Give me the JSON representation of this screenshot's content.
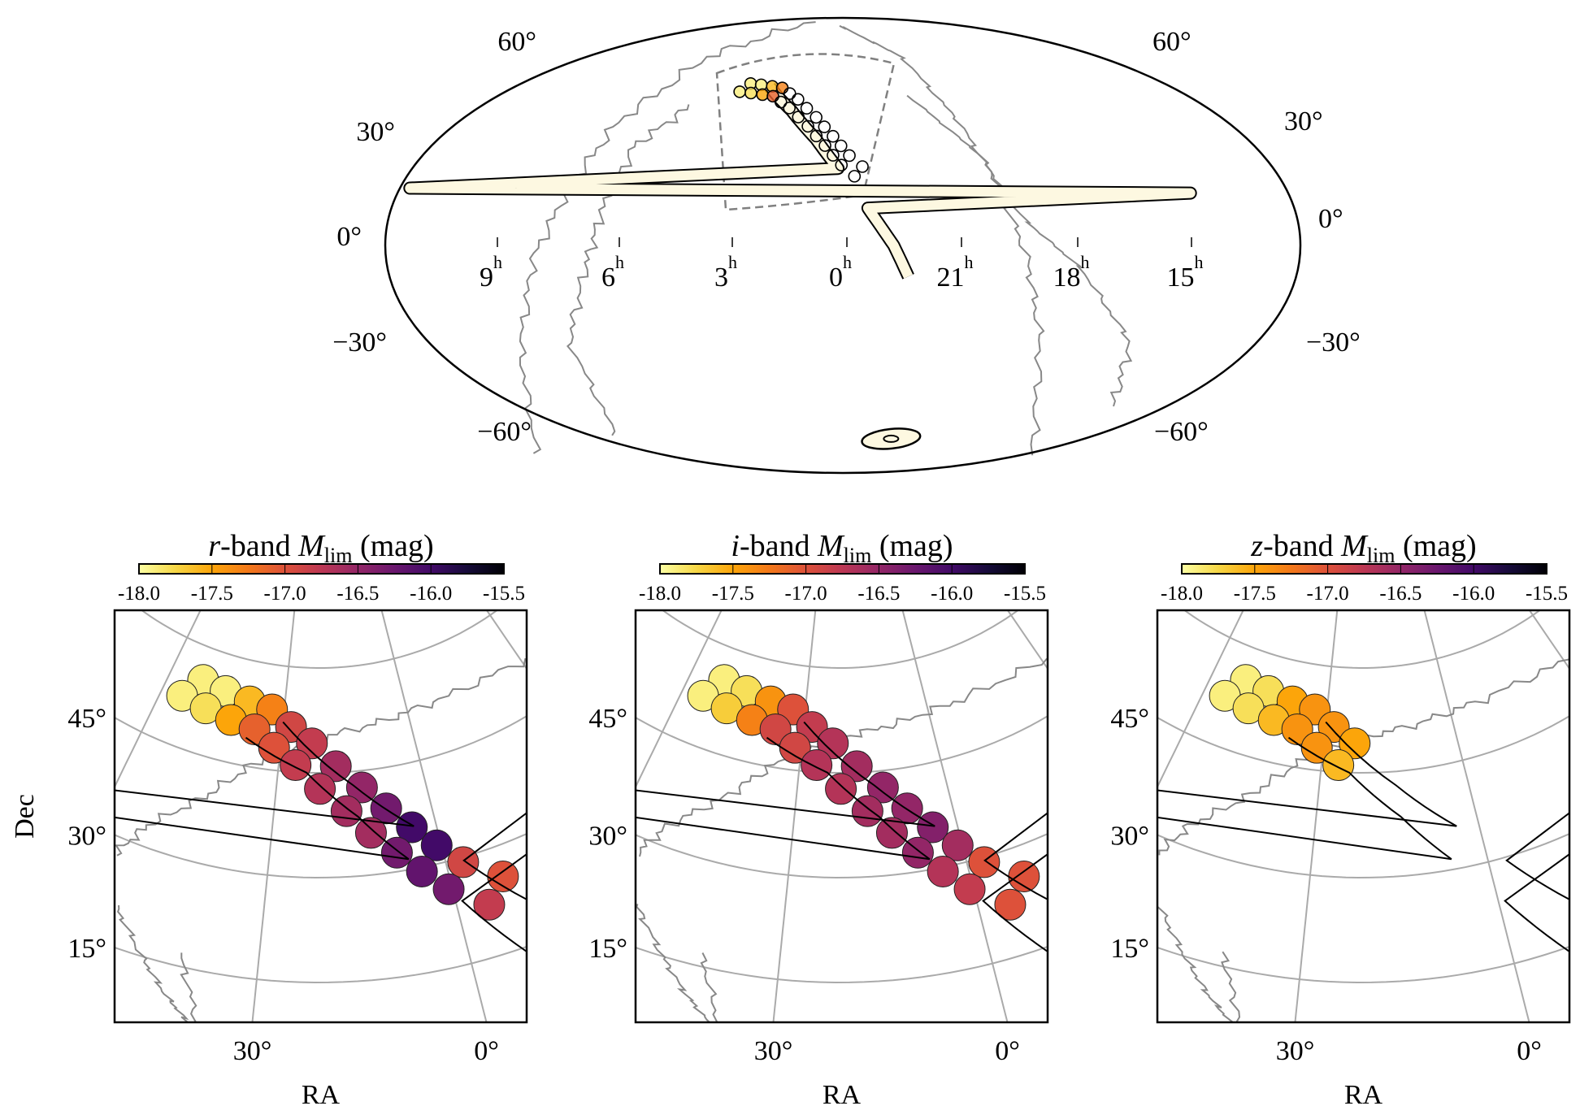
{
  "colormap": {
    "name": "inferno",
    "stops": [
      "#000004",
      "#160b39",
      "#420a68",
      "#6a176e",
      "#932667",
      "#bc3754",
      "#dd513a",
      "#f37819",
      "#fca50a",
      "#f6d746",
      "#fcffa4"
    ],
    "vmin": -18.0,
    "vmax": -15.5,
    "reversed": true
  },
  "colors": {
    "track_fill": "#fdf8e1",
    "contour": "#888888",
    "grid": "#aaaaaa",
    "outline": "#000000"
  },
  "chart_data": [
    {
      "type": "scatter",
      "projection": "mollweide",
      "dec_labels_left": [
        "60°",
        "30°",
        "0°",
        "−30°",
        "−60°"
      ],
      "dec_labels_right": [
        "60°",
        "30°",
        "0°",
        "−30°",
        "−60°"
      ],
      "ra_labels": [
        {
          "value": "9",
          "unit": "h"
        },
        {
          "value": "6",
          "unit": "h"
        },
        {
          "value": "3",
          "unit": "h"
        },
        {
          "value": "0",
          "unit": "h"
        },
        {
          "value": "21",
          "unit": "h"
        },
        {
          "value": "18",
          "unit": "h"
        },
        {
          "value": "15",
          "unit": "h"
        }
      ],
      "localization_track": [
        [
          40,
          54
        ],
        [
          25,
          45
        ],
        [
          12,
          35
        ],
        [
          2,
          25
        ],
        [
          350,
          12
        ],
        [
          340,
          0
        ],
        [
          334,
          -10
        ]
      ],
      "southern_region": [
        324,
        -68.7
      ]
    },
    {
      "type": "scatter",
      "tiles": [
        [
          51.6,
          55.3
        ],
        [
          55.0,
          52.1
        ],
        [
          45.3,
          54.8
        ],
        [
          48.7,
          51.6
        ],
        [
          38.8,
          54.2
        ],
        [
          42.2,
          51.0
        ],
        [
          33.0,
          53.6
        ],
        [
          36.4,
          50.4
        ],
        [
          28.0,
          51.4
        ],
        [
          31.4,
          48.2
        ],
        [
          23.0,
          49.2
        ],
        [
          26.4,
          46.0
        ],
        [
          17.8,
          45.9
        ],
        [
          21.2,
          42.7
        ],
        [
          12.7,
          42.6
        ],
        [
          16.1,
          39.4
        ],
        [
          8.5,
          39.2
        ],
        [
          11.9,
          36.0
        ],
        [
          4.4,
          35.9
        ],
        [
          7.8,
          32.7
        ],
        [
          0.8,
          32.6
        ],
        [
          4.2,
          29.4
        ],
        [
          357.2,
          29.3
        ],
        [
          0.6,
          26.1
        ],
        [
          351.8,
          25.6
        ],
        [
          355.2,
          22.4
        ]
      ],
      "contour_upper": [
        [
          30,
          52
        ],
        [
          14.4,
          43
        ],
        [
          4,
          36
        ],
        [
          357,
          29.5
        ],
        [
          349.7,
          21.4
        ],
        [
          345,
          16
        ]
      ],
      "contour_lower": [
        [
          38,
          49
        ],
        [
          24,
          45
        ],
        [
          14,
          38.5
        ],
        [
          6,
          31.5
        ],
        [
          359,
          24
        ],
        [
          352.2,
          14.3
        ],
        [
          348,
          8
        ]
      ],
      "xlabel": "RA",
      "ylabel": "Dec",
      "ra_ticks": [
        {
          "ra": 30,
          "label": "30°"
        },
        {
          "ra": 0,
          "label": "0°"
        }
      ],
      "dec_ticks": [
        {
          "dec": 45,
          "label": "45°"
        },
        {
          "dec": 30,
          "label": "30°"
        },
        {
          "dec": 15,
          "label": "15°"
        }
      ],
      "colorbar_ticks": [
        "-18.0",
        "-17.5",
        "-17.0",
        "-16.5",
        "-16.0",
        "-15.5"
      ],
      "panels": [
        {
          "band": "r",
          "title_rest": "-band ",
          "title_sym": "M",
          "title_sub": "lim",
          "title_unit": " (mag)",
          "mags": [
            -17.9,
            -17.9,
            -17.9,
            -17.8,
            -17.6,
            -17.5,
            -17.3,
            -17.1,
            -16.9,
            -17.0,
            -16.8,
            -16.8,
            -16.6,
            -16.7,
            -16.5,
            -16.6,
            -16.3,
            -16.6,
            -16.0,
            -16.3,
            -16.0,
            -16.2,
            -16.9,
            -16.3,
            -17.0,
            -16.8
          ]
        },
        {
          "band": "i",
          "title_rest": "-band ",
          "title_sym": "M",
          "title_sub": "lim",
          "title_unit": " (mag)",
          "mags": [
            -17.9,
            -17.9,
            -17.8,
            -17.7,
            -17.4,
            -17.3,
            -17.0,
            -16.9,
            -16.8,
            -16.9,
            -16.7,
            -16.7,
            -16.6,
            -16.7,
            -16.5,
            -16.6,
            -16.5,
            -16.6,
            -16.4,
            -16.5,
            -16.6,
            -16.7,
            -17.0,
            -16.8,
            -17.0,
            -17.0
          ]
        },
        {
          "band": "z",
          "title_rest": "-band ",
          "title_sym": "M",
          "title_sub": "lim",
          "title_unit": " (mag)",
          "mags": [
            -17.9,
            -17.9,
            -17.8,
            -17.8,
            -17.5,
            -17.6,
            -17.4,
            -17.4,
            -17.4,
            -17.4,
            -17.5,
            -17.6,
            null,
            null,
            null,
            null,
            null,
            null,
            null,
            null,
            null,
            null,
            null,
            null,
            null,
            null
          ]
        }
      ]
    }
  ]
}
